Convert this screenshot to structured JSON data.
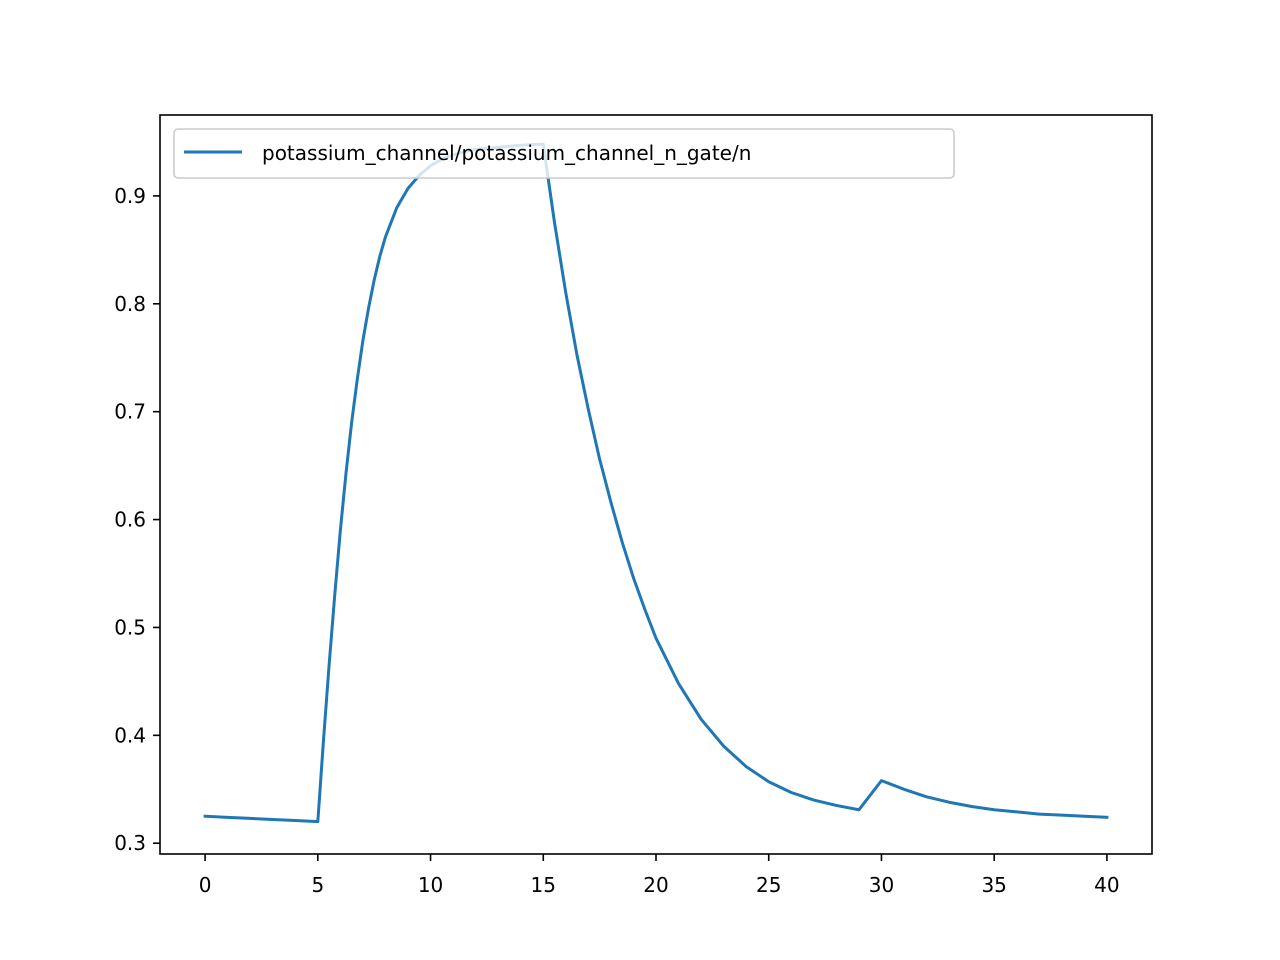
{
  "chart_data": {
    "type": "line",
    "title": "",
    "xlabel": "",
    "ylabel": "",
    "xlim": [
      -2,
      42
    ],
    "ylim": [
      0.29,
      0.975
    ],
    "xticks": [
      0,
      5,
      10,
      15,
      20,
      25,
      30,
      35,
      40
    ],
    "xtick_labels": [
      "0",
      "5",
      "10",
      "15",
      "20",
      "25",
      "30",
      "35",
      "40"
    ],
    "yticks": [
      0.3,
      0.4,
      0.5,
      0.6,
      0.7,
      0.8,
      0.9
    ],
    "ytick_labels": [
      "0.3",
      "0.4",
      "0.5",
      "0.6",
      "0.7",
      "0.8",
      "0.9"
    ],
    "grid": false,
    "legend": "top-left",
    "series": [
      {
        "name": "potassium_channel/potassium_channel_n_gate/n",
        "color": "#1f77b4",
        "x": [
          0,
          1,
          2,
          3,
          4,
          5,
          5.25,
          5.5,
          5.75,
          6,
          6.25,
          6.5,
          6.75,
          7,
          7.25,
          7.5,
          7.75,
          8,
          8.5,
          9,
          9.5,
          10,
          10.5,
          11,
          11.5,
          12,
          13,
          14,
          15,
          15.5,
          16,
          16.5,
          17,
          17.5,
          18,
          18.5,
          19,
          19.5,
          20,
          21,
          22,
          23,
          24,
          25,
          26,
          27,
          28,
          29,
          30,
          31,
          32,
          33,
          34,
          35,
          36,
          37,
          38,
          39,
          40
        ],
        "y": [
          0.325,
          0.324,
          0.323,
          0.322,
          0.321,
          0.32,
          0.395,
          0.465,
          0.53,
          0.59,
          0.643,
          0.69,
          0.73,
          0.766,
          0.796,
          0.822,
          0.844,
          0.862,
          0.889,
          0.907,
          0.919,
          0.928,
          0.934,
          0.938,
          0.941,
          0.943,
          0.945,
          0.947,
          0.948,
          0.875,
          0.81,
          0.752,
          0.702,
          0.656,
          0.616,
          0.579,
          0.546,
          0.517,
          0.49,
          0.448,
          0.415,
          0.39,
          0.371,
          0.357,
          0.347,
          0.34,
          0.335,
          0.331,
          0.358,
          0.35,
          0.343,
          0.338,
          0.334,
          0.331,
          0.329,
          0.327,
          0.326,
          0.325,
          0.324
        ]
      }
    ]
  }
}
